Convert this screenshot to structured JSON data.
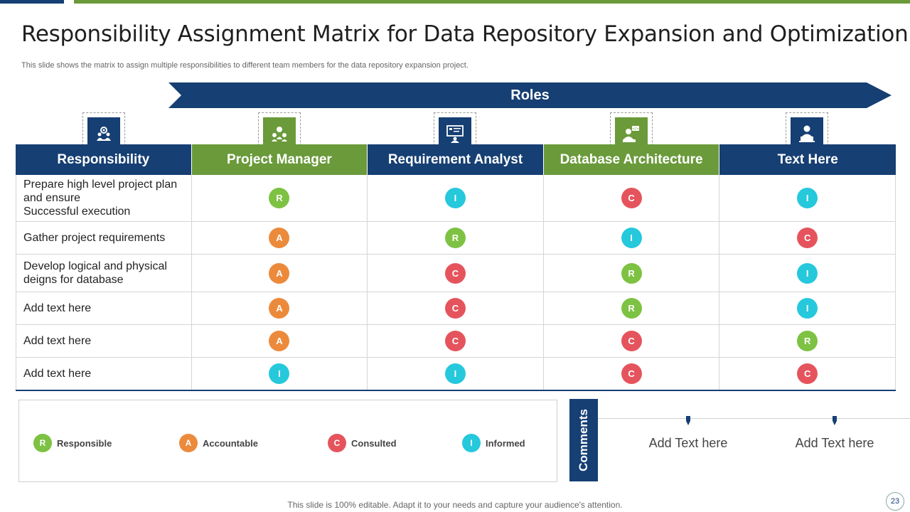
{
  "title": "Responsibility Assignment Matrix for Data Repository Expansion and Optimization",
  "subtitle": "This slide shows the matrix to  assign multiple responsibilities to different team members for the data repository expansion project.",
  "roles_label": "Roles",
  "colors": {
    "navy": "#163f73",
    "green": "#6a9a3a",
    "R": "#7dc242",
    "A": "#ec8a3c",
    "C": "#e5545d",
    "I": "#26c8dc"
  },
  "icons": [
    "team-gears-icon",
    "team-network-icon",
    "analyst-dashboard-icon",
    "developer-code-icon",
    "user-laptop-icon"
  ],
  "headers": [
    "Responsibility",
    "Project Manager",
    "Requirement Analyst",
    "Database Architecture",
    "Text Here"
  ],
  "rows": [
    {
      "lines": [
        "Prepare high level project plan",
        "and ensure",
        "Successful execution"
      ],
      "codes": [
        "R",
        "I",
        "C",
        "I"
      ]
    },
    {
      "lines": [
        "Gather project requirements"
      ],
      "codes": [
        "A",
        "R",
        "I",
        "C"
      ]
    },
    {
      "lines": [
        "Develop logical and physical",
        "deigns for database"
      ],
      "codes": [
        "A",
        "C",
        "R",
        "I"
      ]
    },
    {
      "lines": [
        "Add text here"
      ],
      "codes": [
        "A",
        "C",
        "R",
        "I"
      ]
    },
    {
      "lines": [
        "Add text here"
      ],
      "codes": [
        "A",
        "C",
        "C",
        "R"
      ]
    },
    {
      "lines": [
        "Add text here"
      ],
      "codes": [
        "I",
        "I",
        "C",
        "C"
      ]
    }
  ],
  "legend": [
    {
      "code": "R",
      "label": "Responsible"
    },
    {
      "code": "A",
      "label": "Accountable"
    },
    {
      "code": "C",
      "label": "Consulted"
    },
    {
      "code": "I",
      "label": "Informed"
    }
  ],
  "comments_label": "Comments",
  "comments": [
    "Add Text here",
    "Add Text here"
  ],
  "footer": "This slide is 100% editable. Adapt it to your needs and capture your audience's attention.",
  "page_number": "23"
}
